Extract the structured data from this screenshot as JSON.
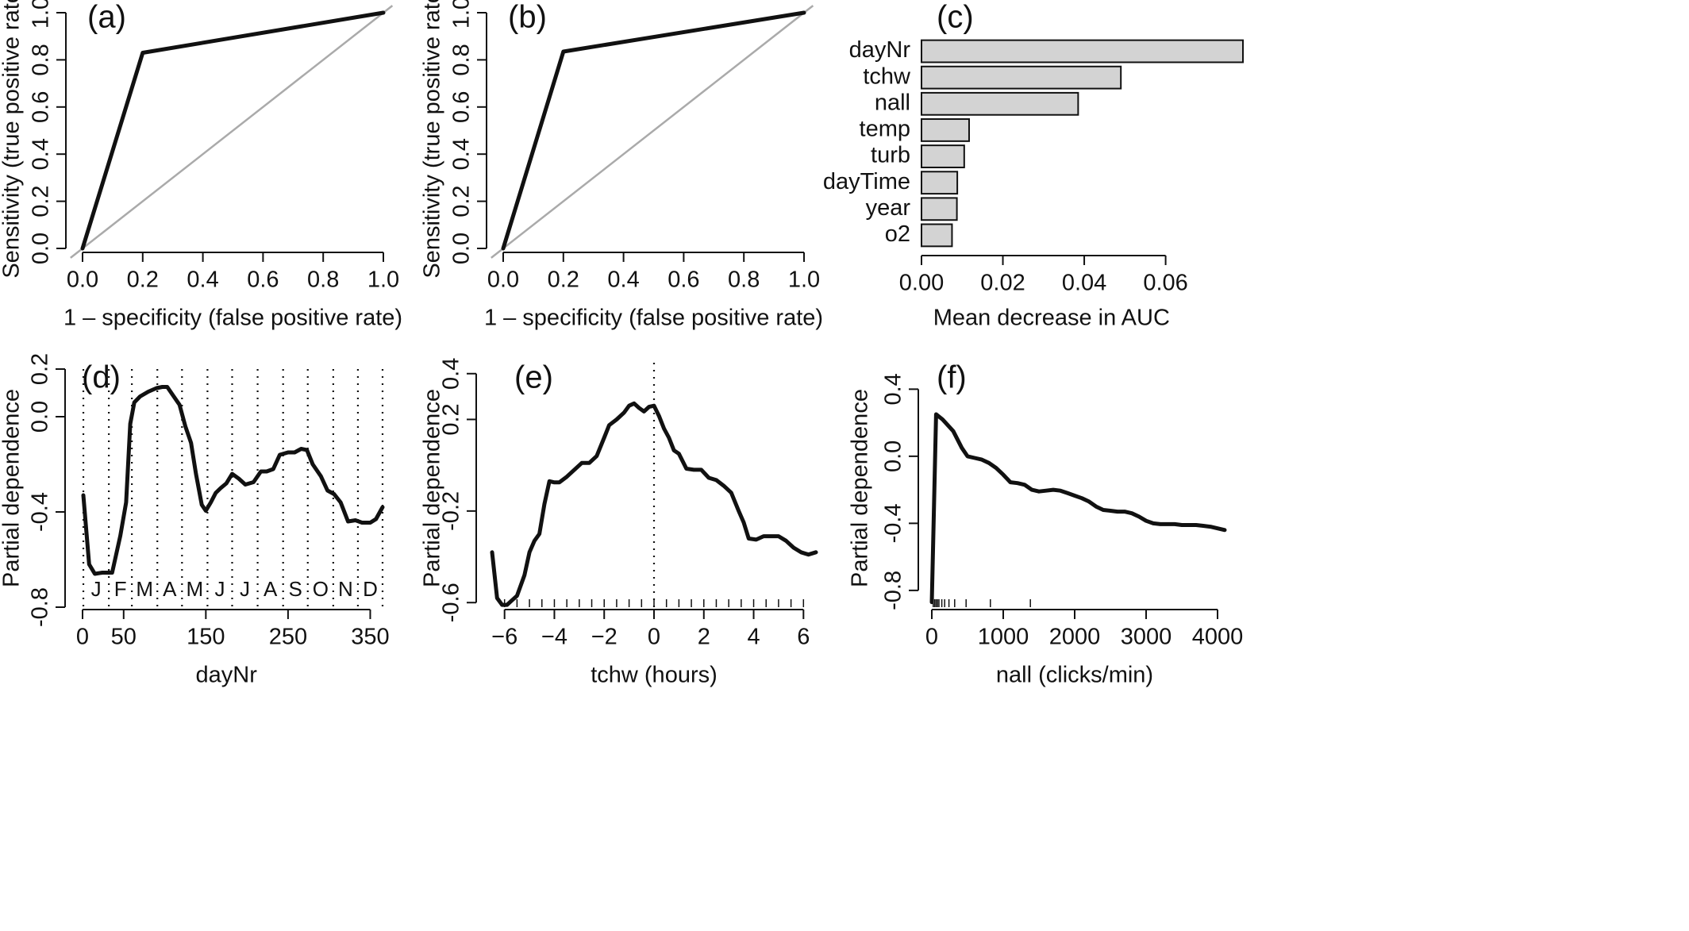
{
  "chart_data": [
    {
      "panel": "a",
      "type": "line",
      "panel_label": "(a)",
      "xlabel": "1 – specificity (false positive rate)",
      "ylabel": "Sensitivity (true positive rate)",
      "xlim": [
        0,
        1
      ],
      "ylim": [
        0,
        1
      ],
      "xticks": [
        "0.0",
        "0.2",
        "0.4",
        "0.6",
        "0.8",
        "1.0"
      ],
      "yticks": [
        "0.0",
        "0.2",
        "0.4",
        "0.6",
        "0.8",
        "1.0"
      ],
      "series": [
        {
          "x": [
            0,
            0.2,
            1
          ],
          "y": [
            0,
            0.83,
            1
          ],
          "color": "#111111"
        },
        {
          "x": [
            0,
            1
          ],
          "y": [
            0,
            1
          ],
          "color": "#aaaaaa"
        }
      ]
    },
    {
      "panel": "b",
      "type": "line",
      "panel_label": "(b)",
      "xlabel": "1 – specificity (false positive rate)",
      "ylabel": "Sensitivity (true positive rate)",
      "xlim": [
        0,
        1
      ],
      "ylim": [
        0,
        1
      ],
      "xticks": [
        "0.0",
        "0.2",
        "0.4",
        "0.6",
        "0.8",
        "1.0"
      ],
      "yticks": [
        "0.0",
        "0.2",
        "0.4",
        "0.6",
        "0.8",
        "1.0"
      ],
      "series": [
        {
          "x": [
            0,
            0.2,
            1
          ],
          "y": [
            0,
            0.835,
            1
          ],
          "color": "#111111"
        },
        {
          "x": [
            0,
            1
          ],
          "y": [
            0,
            1
          ],
          "color": "#aaaaaa"
        }
      ]
    },
    {
      "panel": "c",
      "type": "bar",
      "orientation": "horizontal",
      "panel_label": "(c)",
      "xlabel": "Mean decrease in AUC",
      "categories": [
        "dayNr",
        "tchw",
        "nall",
        "temp",
        "turb",
        "dayTime",
        "year",
        "o2"
      ],
      "values": [
        0.079,
        0.049,
        0.0385,
        0.0117,
        0.0105,
        0.0088,
        0.0087,
        0.0075
      ],
      "xlim": [
        0,
        0.079
      ],
      "xticks": [
        "0.00",
        "0.02",
        "0.04",
        "0.06"
      ],
      "bar_color": "#d3d3d3"
    },
    {
      "panel": "d",
      "type": "line",
      "panel_label": "(d)",
      "xlabel": "dayNr",
      "ylabel": "Partial dependence",
      "xlim": [
        0,
        365
      ],
      "ylim": [
        -0.8,
        0.2
      ],
      "xticks": [
        "0",
        "50",
        "150",
        "250",
        "350"
      ],
      "yticks": [
        "-0.8",
        "-0.4",
        "0.0",
        "0.2"
      ],
      "month_boundaries": [
        1,
        32,
        60,
        91,
        121,
        152,
        182,
        213,
        244,
        274,
        305,
        335,
        365
      ],
      "month_labels": [
        "J",
        "F",
        "M",
        "A",
        "M",
        "J",
        "J",
        "A",
        "S",
        "O",
        "N",
        "D"
      ],
      "series": [
        {
          "x": [
            1,
            8,
            15,
            24,
            36,
            46,
            53,
            58,
            63,
            70,
            80,
            90,
            97,
            103,
            110,
            118,
            125,
            132,
            138,
            145,
            150,
            156,
            162,
            168,
            175,
            182,
            190,
            198,
            208,
            217,
            224,
            232,
            240,
            250,
            258,
            266,
            273,
            280,
            290,
            298,
            306,
            314,
            323,
            332,
            340,
            350,
            357,
            365
          ],
          "y": [
            -0.33,
            -0.62,
            -0.66,
            -0.655,
            -0.655,
            -0.5,
            -0.36,
            -0.03,
            0.06,
            0.085,
            0.105,
            0.12,
            0.125,
            0.125,
            0.09,
            0.05,
            -0.04,
            -0.11,
            -0.24,
            -0.37,
            -0.395,
            -0.36,
            -0.32,
            -0.3,
            -0.28,
            -0.24,
            -0.26,
            -0.285,
            -0.275,
            -0.23,
            -0.23,
            -0.22,
            -0.16,
            -0.15,
            -0.15,
            -0.135,
            -0.14,
            -0.2,
            -0.25,
            -0.31,
            -0.325,
            -0.36,
            -0.44,
            -0.435,
            -0.445,
            -0.445,
            -0.43,
            -0.38
          ],
          "color": "#111111"
        }
      ]
    },
    {
      "panel": "e",
      "type": "line",
      "panel_label": "(e)",
      "xlabel": "tchw (hours)",
      "ylabel": "Partial dependence",
      "xlim": [
        -6.5,
        6.5
      ],
      "ylim": [
        -0.62,
        0.42
      ],
      "xticks": [
        "−6",
        "−4",
        "−2",
        "0",
        "2",
        "4",
        "6"
      ],
      "yticks": [
        "-0.6",
        "-0.2",
        "0.2",
        "0.4"
      ],
      "vline_x": 0,
      "series": [
        {
          "x": [
            -6.5,
            -6.3,
            -6.1,
            -5.9,
            -5.7,
            -5.5,
            -5.2,
            -5.0,
            -4.8,
            -4.6,
            -4.4,
            -4.2,
            -4.0,
            -3.8,
            -3.5,
            -3.2,
            -2.9,
            -2.6,
            -2.3,
            -2.0,
            -1.8,
            -1.5,
            -1.2,
            -1.0,
            -0.8,
            -0.6,
            -0.4,
            -0.2,
            0.0,
            0.2,
            0.4,
            0.6,
            0.8,
            1.0,
            1.3,
            1.6,
            1.9,
            2.2,
            2.5,
            2.8,
            3.1,
            3.4,
            3.6,
            3.8,
            4.1,
            4.4,
            4.7,
            5.0,
            5.3,
            5.6,
            5.9,
            6.2,
            6.5
          ],
          "y": [
            -0.38,
            -0.58,
            -0.61,
            -0.61,
            -0.59,
            -0.57,
            -0.48,
            -0.38,
            -0.33,
            -0.3,
            -0.17,
            -0.07,
            -0.075,
            -0.075,
            -0.05,
            -0.02,
            0.01,
            0.01,
            0.04,
            0.12,
            0.175,
            0.2,
            0.23,
            0.26,
            0.27,
            0.25,
            0.235,
            0.255,
            0.26,
            0.215,
            0.16,
            0.12,
            0.065,
            0.05,
            -0.015,
            -0.02,
            -0.02,
            -0.055,
            -0.065,
            -0.09,
            -0.12,
            -0.2,
            -0.25,
            -0.32,
            -0.325,
            -0.31,
            -0.31,
            -0.31,
            -0.33,
            -0.36,
            -0.38,
            -0.39,
            -0.38
          ],
          "color": "#111111"
        }
      ]
    },
    {
      "panel": "f",
      "type": "line",
      "panel_label": "(f)",
      "xlabel": "nall (clicks/min)",
      "ylabel": "Partial dependence",
      "xlim": [
        0,
        4200
      ],
      "ylim": [
        -0.9,
        0.52
      ],
      "xticks": [
        "0",
        "1000",
        "2000",
        "3000",
        "4000"
      ],
      "yticks": [
        "-0.8",
        "-0.4",
        "0.0",
        "0.4"
      ],
      "rug_x": [
        20,
        40,
        60,
        80,
        100,
        140,
        180,
        240,
        320,
        480,
        820,
        1380
      ],
      "series": [
        {
          "x": [
            0,
            60,
            150,
            300,
            420,
            500,
            600,
            700,
            800,
            900,
            1000,
            1100,
            1200,
            1300,
            1400,
            1500,
            1600,
            1700,
            1800,
            1900,
            2000,
            2100,
            2200,
            2300,
            2400,
            2500,
            2600,
            2700,
            2800,
            2900,
            3000,
            3100,
            3200,
            3300,
            3400,
            3500,
            3600,
            3700,
            3800,
            3900,
            4000,
            4100
          ],
          "y": [
            -0.87,
            0.25,
            0.22,
            0.15,
            0.05,
            0.0,
            -0.01,
            -0.02,
            -0.04,
            -0.07,
            -0.11,
            -0.155,
            -0.16,
            -0.17,
            -0.2,
            -0.21,
            -0.205,
            -0.2,
            -0.205,
            -0.22,
            -0.235,
            -0.25,
            -0.27,
            -0.3,
            -0.32,
            -0.325,
            -0.33,
            -0.33,
            -0.34,
            -0.36,
            -0.385,
            -0.4,
            -0.405,
            -0.405,
            -0.405,
            -0.41,
            -0.41,
            -0.41,
            -0.415,
            -0.42,
            -0.43,
            -0.44
          ],
          "color": "#111111"
        }
      ]
    }
  ]
}
